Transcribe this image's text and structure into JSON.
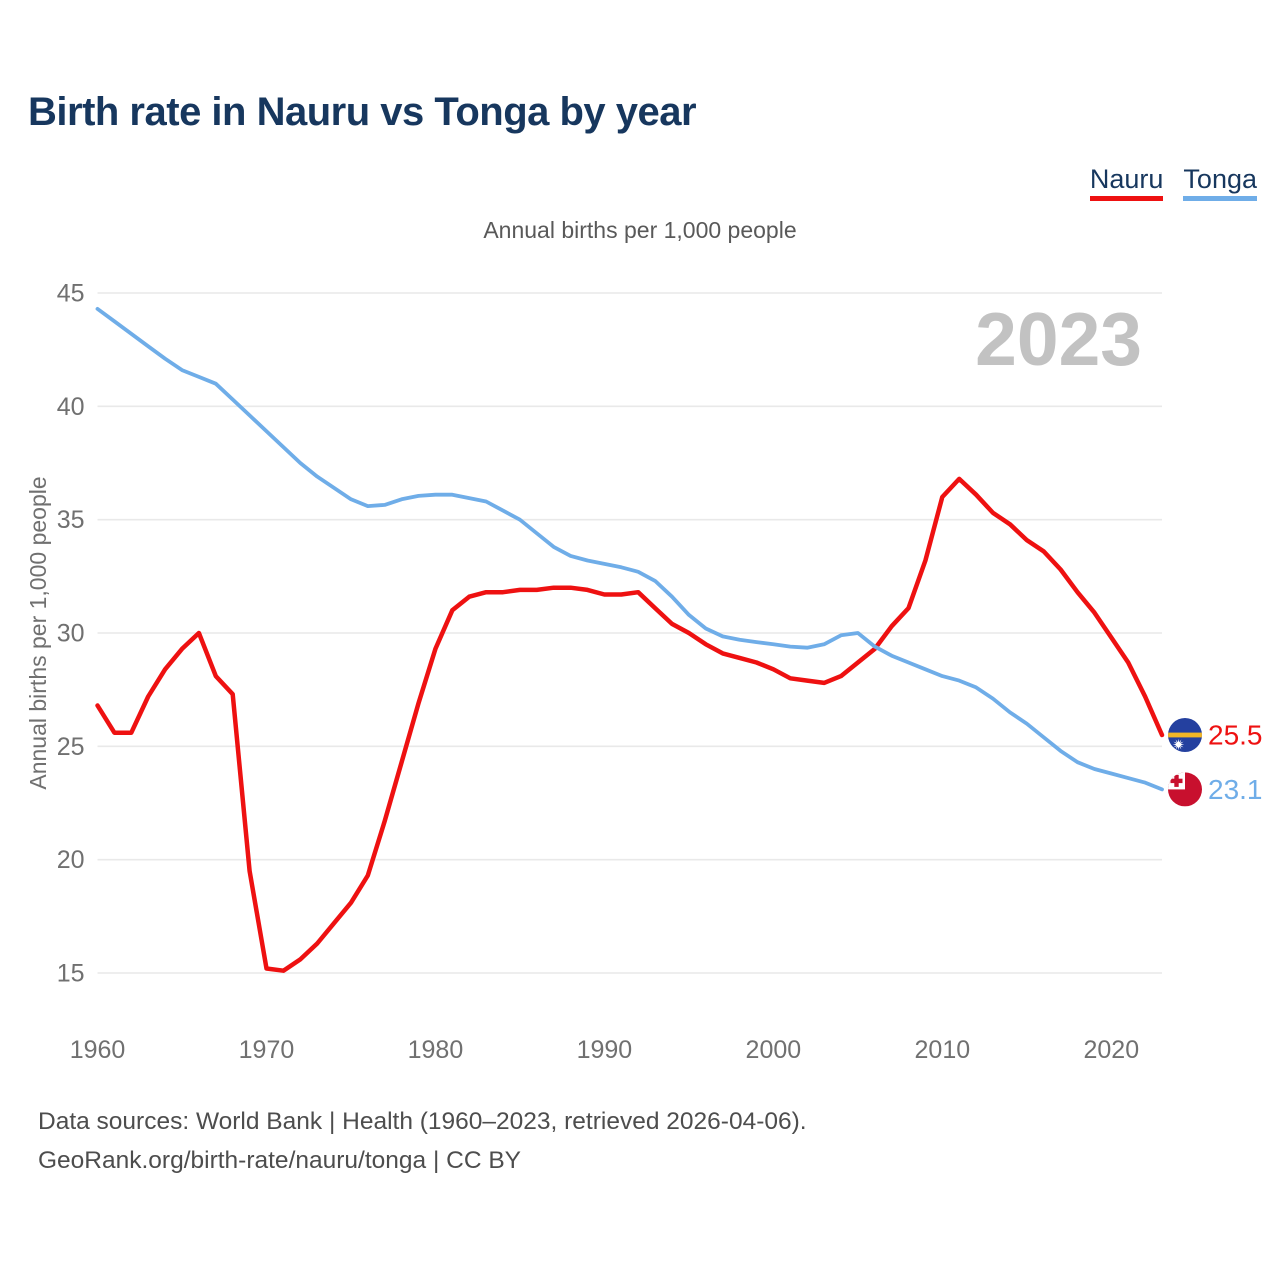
{
  "header": {
    "title": "Birth rate in Nauru vs Tonga by year"
  },
  "legend": [
    {
      "label": "Nauru",
      "color": "#ee1111"
    },
    {
      "label": "Tonga",
      "color": "#6fade8"
    }
  ],
  "watermark": "2023",
  "footer": {
    "line1": "Data sources: World Bank | Health (1960–2023, retrieved 2026-04-06).",
    "line2": "GeoRank.org/birth-rate/nauru/tonga | CC BY"
  },
  "colors": {
    "title": "#17375e",
    "axis_text": "#707070",
    "gridline": "#e9e9e9",
    "watermark": "#c2c2c2",
    "background": "#ffffff",
    "nauru_red": "#ee1111",
    "tonga_blue": "#6fade8"
  },
  "chart_data": {
    "type": "line",
    "title": "Annual births per 1,000 people",
    "xlabel": "",
    "ylabel": "Annual births per 1,000 people",
    "grid": "horizontal",
    "legend_position": "top-right",
    "xlim": [
      1960,
      2023
    ],
    "ylim": [
      15,
      45
    ],
    "xticks": [
      1960,
      1970,
      1980,
      1990,
      2000,
      2010,
      2020
    ],
    "yticks": [
      15,
      20,
      25,
      30,
      35,
      40,
      45
    ],
    "x": [
      1960,
      1961,
      1962,
      1963,
      1964,
      1965,
      1966,
      1967,
      1968,
      1969,
      1970,
      1971,
      1972,
      1973,
      1974,
      1975,
      1976,
      1977,
      1978,
      1979,
      1980,
      1981,
      1982,
      1983,
      1984,
      1985,
      1986,
      1987,
      1988,
      1989,
      1990,
      1991,
      1992,
      1993,
      1994,
      1995,
      1996,
      1997,
      1998,
      1999,
      2000,
      2001,
      2002,
      2003,
      2004,
      2005,
      2006,
      2007,
      2008,
      2009,
      2010,
      2011,
      2012,
      2013,
      2014,
      2015,
      2016,
      2017,
      2018,
      2019,
      2020,
      2021,
      2022,
      2023
    ],
    "series": [
      {
        "name": "Nauru",
        "color": "#ee1111",
        "end_label": "25.5",
        "flag": {
          "type": "nauru",
          "blue": "#24409f",
          "yellow": "#f2b626",
          "white": "#ffffff"
        },
        "values": [
          26.8,
          25.6,
          25.6,
          27.2,
          28.4,
          29.3,
          30.0,
          28.1,
          27.3,
          19.5,
          15.2,
          15.1,
          15.6,
          16.3,
          17.2,
          18.1,
          19.3,
          21.7,
          24.3,
          26.9,
          29.3,
          31.0,
          31.6,
          31.8,
          31.8,
          31.9,
          31.9,
          32.0,
          32.0,
          31.9,
          31.7,
          31.7,
          31.8,
          31.1,
          30.4,
          30.0,
          29.5,
          29.1,
          28.9,
          28.7,
          28.4,
          28.0,
          27.9,
          27.8,
          28.1,
          28.7,
          29.3,
          30.3,
          31.1,
          33.2,
          36.0,
          36.8,
          36.1,
          35.3,
          34.8,
          34.1,
          33.6,
          32.8,
          31.8,
          30.9,
          29.8,
          28.7,
          27.2,
          25.5
        ]
      },
      {
        "name": "Tonga",
        "color": "#6fade8",
        "end_label": "23.1",
        "flag": {
          "type": "tonga",
          "red": "#c8102e",
          "white": "#ffffff"
        },
        "values": [
          44.3,
          43.75,
          43.2,
          42.65,
          42.1,
          41.6,
          41.3,
          41.0,
          40.3,
          39.6,
          38.9,
          38.2,
          37.5,
          36.9,
          36.4,
          35.9,
          35.6,
          35.65,
          35.9,
          36.05,
          36.1,
          36.1,
          35.95,
          35.8,
          35.4,
          35.0,
          34.4,
          33.8,
          33.4,
          33.2,
          33.05,
          32.9,
          32.7,
          32.3,
          31.6,
          30.8,
          30.2,
          29.85,
          29.7,
          29.6,
          29.5,
          29.4,
          29.35,
          29.5,
          29.9,
          30.0,
          29.4,
          29.0,
          28.7,
          28.4,
          28.1,
          27.9,
          27.6,
          27.1,
          26.5,
          26.0,
          25.4,
          24.8,
          24.3,
          24.0,
          23.8,
          23.6,
          23.4,
          23.1
        ]
      }
    ]
  }
}
